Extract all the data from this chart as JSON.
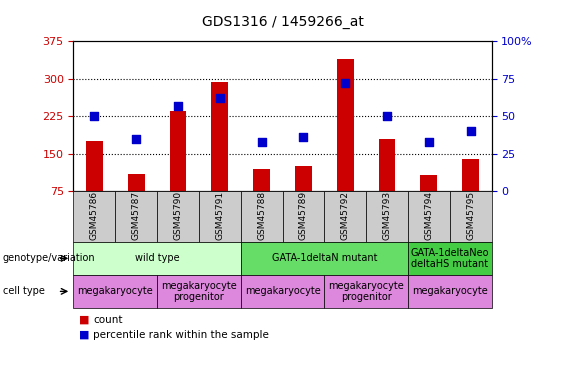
{
  "title": "GDS1316 / 1459266_at",
  "samples": [
    "GSM45786",
    "GSM45787",
    "GSM45790",
    "GSM45791",
    "GSM45788",
    "GSM45789",
    "GSM45792",
    "GSM45793",
    "GSM45794",
    "GSM45795"
  ],
  "counts": [
    175,
    110,
    235,
    293,
    120,
    125,
    340,
    180,
    108,
    140
  ],
  "percentile_ranks": [
    50,
    35,
    57,
    62,
    33,
    36,
    72,
    50,
    33,
    40
  ],
  "ymin": 75,
  "ymax": 375,
  "yticks": [
    75,
    150,
    225,
    300,
    375
  ],
  "y2min": 0,
  "y2max": 100,
  "y2ticks": [
    0,
    25,
    50,
    75,
    100
  ],
  "bar_color": "#cc0000",
  "dot_color": "#0000cc",
  "bar_width": 0.4,
  "genotype_groups": [
    {
      "label": "wild type",
      "start": 0,
      "end": 3,
      "color": "#ccffcc"
    },
    {
      "label": "GATA-1deltaN mutant",
      "start": 4,
      "end": 7,
      "color": "#66dd66"
    },
    {
      "label": "GATA-1deltaNeo\ndeltaHS mutant",
      "start": 8,
      "end": 9,
      "color": "#44cc44"
    }
  ],
  "celltype_groups": [
    {
      "label": "megakaryocyte",
      "start": 0,
      "end": 1,
      "color": "#dd88dd"
    },
    {
      "label": "megakaryocyte\nprogenitor",
      "start": 2,
      "end": 3,
      "color": "#dd88dd"
    },
    {
      "label": "megakaryocyte",
      "start": 4,
      "end": 5,
      "color": "#dd88dd"
    },
    {
      "label": "megakaryocyte\nprogenitor",
      "start": 6,
      "end": 7,
      "color": "#dd88dd"
    },
    {
      "label": "megakaryocyte",
      "start": 8,
      "end": 9,
      "color": "#dd88dd"
    }
  ],
  "tick_label_color_left": "#cc0000",
  "tick_label_color_right": "#0000cc"
}
